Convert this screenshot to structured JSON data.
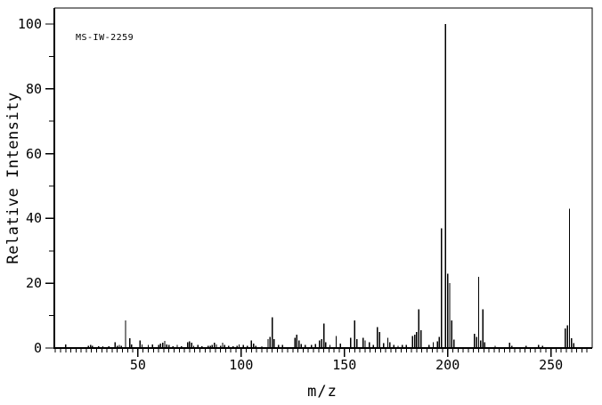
{
  "header": {
    "spectrum_id": "MS-IW-2259"
  },
  "colors": {
    "foreground": "#000000",
    "background": "#ffffff"
  },
  "chart_data": {
    "type": "bar",
    "subtype": "mass-spectrum",
    "title": "MS-IW-2259",
    "xlabel": "m/z",
    "ylabel": "Relative Intensity",
    "xlim": [
      9.5,
      270
    ],
    "ylim": [
      0,
      104.8
    ],
    "grid": false,
    "x_major_ticks": [
      50,
      100,
      150,
      200,
      250
    ],
    "x_minor_tick_step": 2.5,
    "y_major_ticks": [
      0,
      20,
      40,
      60,
      80,
      100
    ],
    "y_minor_ticks": [
      10,
      30,
      50,
      70,
      90
    ],
    "peaks": [
      [
        15,
        1.1
      ],
      [
        26,
        0.7
      ],
      [
        27,
        0.9
      ],
      [
        28,
        0.7
      ],
      [
        31,
        0.6
      ],
      [
        33,
        0.5
      ],
      [
        36,
        0.5
      ],
      [
        39,
        1.8
      ],
      [
        40,
        0.7
      ],
      [
        41,
        0.9
      ],
      [
        42,
        0.7
      ],
      [
        44,
        8.5
      ],
      [
        46,
        3.0
      ],
      [
        47,
        1.1
      ],
      [
        51,
        2.3
      ],
      [
        52,
        1.1
      ],
      [
        55,
        0.9
      ],
      [
        57,
        1.1
      ],
      [
        60,
        0.9
      ],
      [
        61,
        1.4
      ],
      [
        62,
        1.6
      ],
      [
        63,
        2.2
      ],
      [
        64,
        1.1
      ],
      [
        65,
        0.9
      ],
      [
        67,
        0.6
      ],
      [
        69,
        0.9
      ],
      [
        71,
        0.6
      ],
      [
        74,
        1.8
      ],
      [
        75,
        2.0
      ],
      [
        76,
        1.6
      ],
      [
        77,
        0.7
      ],
      [
        79,
        0.9
      ],
      [
        81,
        0.6
      ],
      [
        84,
        0.7
      ],
      [
        85,
        0.7
      ],
      [
        86,
        0.9
      ],
      [
        87,
        1.6
      ],
      [
        88,
        1.1
      ],
      [
        90,
        0.7
      ],
      [
        91,
        1.6
      ],
      [
        92,
        0.9
      ],
      [
        94,
        0.7
      ],
      [
        96,
        0.6
      ],
      [
        98,
        0.7
      ],
      [
        99,
        1.1
      ],
      [
        101,
        0.9
      ],
      [
        103,
        0.7
      ],
      [
        105,
        2.4
      ],
      [
        106,
        1.4
      ],
      [
        107,
        0.7
      ],
      [
        110,
        0.6
      ],
      [
        113,
        2.7
      ],
      [
        114,
        3.5
      ],
      [
        115,
        9.5
      ],
      [
        116,
        2.7
      ],
      [
        118,
        0.9
      ],
      [
        120,
        1.0
      ],
      [
        126,
        3.2
      ],
      [
        127,
        4.1
      ],
      [
        128,
        2.3
      ],
      [
        129,
        1.2
      ],
      [
        131,
        1.0
      ],
      [
        134,
        1.0
      ],
      [
        136,
        1.2
      ],
      [
        138,
        2.3
      ],
      [
        139,
        2.7
      ],
      [
        140,
        7.5
      ],
      [
        141,
        1.8
      ],
      [
        143,
        0.9
      ],
      [
        146,
        3.7
      ],
      [
        148,
        1.4
      ],
      [
        153,
        3.2
      ],
      [
        155,
        8.5
      ],
      [
        156,
        2.7
      ],
      [
        159,
        3.2
      ],
      [
        160,
        2.3
      ],
      [
        162,
        1.8
      ],
      [
        164,
        1.0
      ],
      [
        166,
        6.4
      ],
      [
        167,
        5.0
      ],
      [
        169,
        1.5
      ],
      [
        171,
        3.2
      ],
      [
        172,
        1.8
      ],
      [
        174,
        1.0
      ],
      [
        176,
        0.7
      ],
      [
        178,
        0.9
      ],
      [
        180,
        1.0
      ],
      [
        183,
        3.7
      ],
      [
        184,
        4.1
      ],
      [
        185,
        5.0
      ],
      [
        186,
        12.0
      ],
      [
        187,
        5.5
      ],
      [
        191,
        0.9
      ],
      [
        193,
        1.8
      ],
      [
        195,
        2.0
      ],
      [
        196,
        3.5
      ],
      [
        197,
        37.0
      ],
      [
        199,
        100.0
      ],
      [
        200,
        23.0
      ],
      [
        201,
        20.0
      ],
      [
        202,
        8.5
      ],
      [
        203,
        2.6
      ],
      [
        213,
        4.4
      ],
      [
        214,
        3.5
      ],
      [
        215,
        22.0
      ],
      [
        216,
        2.3
      ],
      [
        217,
        12.0
      ],
      [
        218,
        1.8
      ],
      [
        223,
        0.7
      ],
      [
        230,
        1.6
      ],
      [
        231,
        0.7
      ],
      [
        238,
        0.7
      ],
      [
        244,
        0.9
      ],
      [
        246,
        0.7
      ],
      [
        257,
        6.0
      ],
      [
        258,
        7.0
      ],
      [
        259,
        43.0
      ],
      [
        260,
        3.0
      ],
      [
        261,
        1.5
      ]
    ]
  }
}
